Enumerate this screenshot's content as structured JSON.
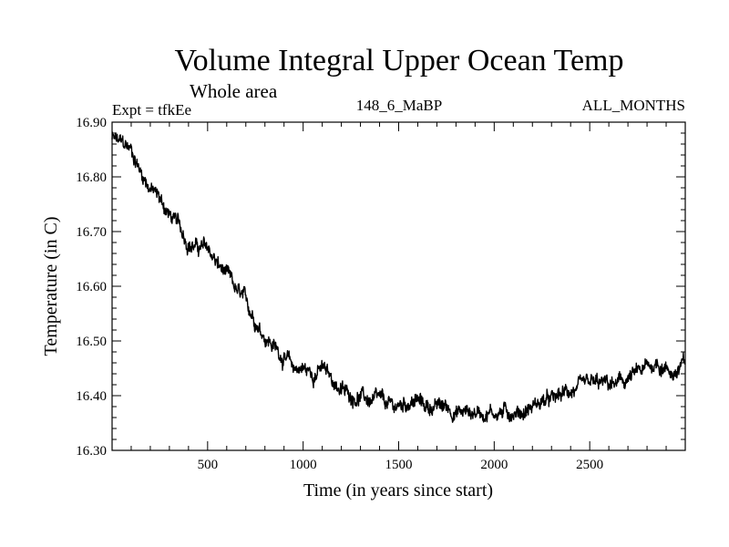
{
  "chart_data": {
    "type": "line",
    "title": "Volume Integral Upper Ocean Temp",
    "subtitle": "Whole area",
    "experiment": "Expt = tfkEe",
    "run_id": "148_6_MaBP",
    "period": "ALL_MONTHS",
    "xlabel": "Time (in years since start)",
    "ylabel": "Temperature (in C)",
    "xlim": [
      0,
      3000
    ],
    "ylim": [
      16.3,
      16.9
    ],
    "xticks": [
      500,
      1000,
      1500,
      2000,
      2500
    ],
    "xtick_labels": [
      "500",
      "1000",
      "1500",
      "2000",
      "2500"
    ],
    "yticks": [
      16.3,
      16.4,
      16.5,
      16.6,
      16.7,
      16.8,
      16.9
    ],
    "ytick_labels": [
      "16.30",
      "16.40",
      "16.50",
      "16.60",
      "16.70",
      "16.80",
      "16.90"
    ],
    "grid": false,
    "line_color": "#000000",
    "series_trend": {
      "x": [
        0,
        50,
        100,
        150,
        200,
        250,
        300,
        350,
        400,
        450,
        500,
        550,
        600,
        650,
        700,
        750,
        800,
        850,
        900,
        950,
        1000,
        1050,
        1100,
        1150,
        1200,
        1250,
        1300,
        1350,
        1400,
        1450,
        1500,
        1550,
        1600,
        1650,
        1700,
        1750,
        1800,
        1850,
        1900,
        1950,
        2000,
        2050,
        2100,
        2150,
        2200,
        2250,
        2300,
        2350,
        2400,
        2450,
        2500,
        2550,
        2600,
        2650,
        2700,
        2750,
        2800,
        2850,
        2900,
        2950,
        3000
      ],
      "y": [
        16.87,
        16.86,
        16.85,
        16.81,
        16.78,
        16.76,
        16.73,
        16.71,
        16.68,
        16.67,
        16.67,
        16.64,
        16.62,
        16.59,
        16.57,
        16.54,
        16.51,
        16.49,
        16.47,
        16.45,
        16.45,
        16.44,
        16.45,
        16.43,
        16.41,
        16.4,
        16.4,
        16.39,
        16.39,
        16.38,
        16.38,
        16.39,
        16.39,
        16.38,
        16.38,
        16.38,
        16.37,
        16.37,
        16.37,
        16.37,
        16.37,
        16.37,
        16.37,
        16.37,
        16.38,
        16.39,
        16.39,
        16.4,
        16.41,
        16.41,
        16.42,
        16.42,
        16.42,
        16.42,
        16.43,
        16.44,
        16.45,
        16.46,
        16.45,
        16.44,
        16.46
      ]
    },
    "noise_amplitude": 0.012
  }
}
